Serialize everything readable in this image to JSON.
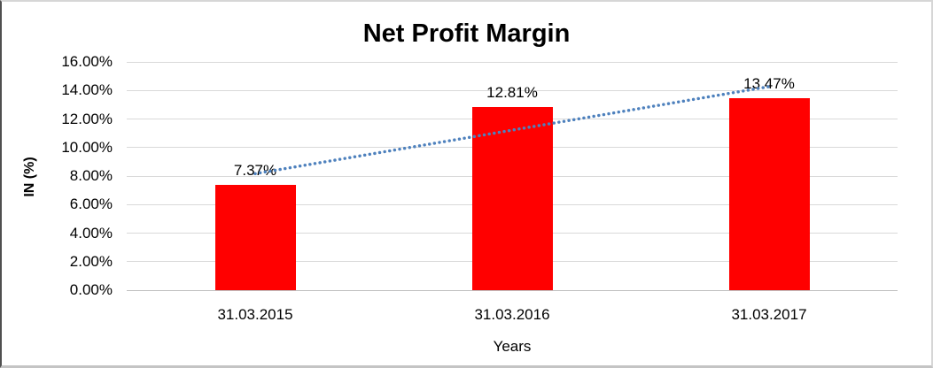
{
  "chart": {
    "bar_color": "#FF0000",
    "trendline_color": "#4E81BD",
    "gridline_color": "#D9D9D9",
    "axis_line_color": "#C0C0C0",
    "text_color": "#000000"
  },
  "chart_data": {
    "type": "bar",
    "title": "Net Profit Margin",
    "categories": [
      "31.03.2015",
      "31.03.2016",
      "31.03.2017"
    ],
    "values": [
      7.37,
      12.81,
      13.47
    ],
    "data_labels": [
      "7.37%",
      "12.81%",
      "13.47%"
    ],
    "xlabel": "Years",
    "ylabel": "IN (%)",
    "ylim": [
      0,
      16
    ],
    "ytick_step": 2,
    "ytick_labels": [
      "0.00%",
      "2.00%",
      "4.00%",
      "6.00%",
      "8.00%",
      "10.00%",
      "12.00%",
      "14.00%",
      "16.00%"
    ],
    "grid": true,
    "legend_position": "none",
    "series_color": "#FF0000",
    "trendline": {
      "type": "linear",
      "style": "dotted",
      "color": "#4E81BD"
    }
  }
}
